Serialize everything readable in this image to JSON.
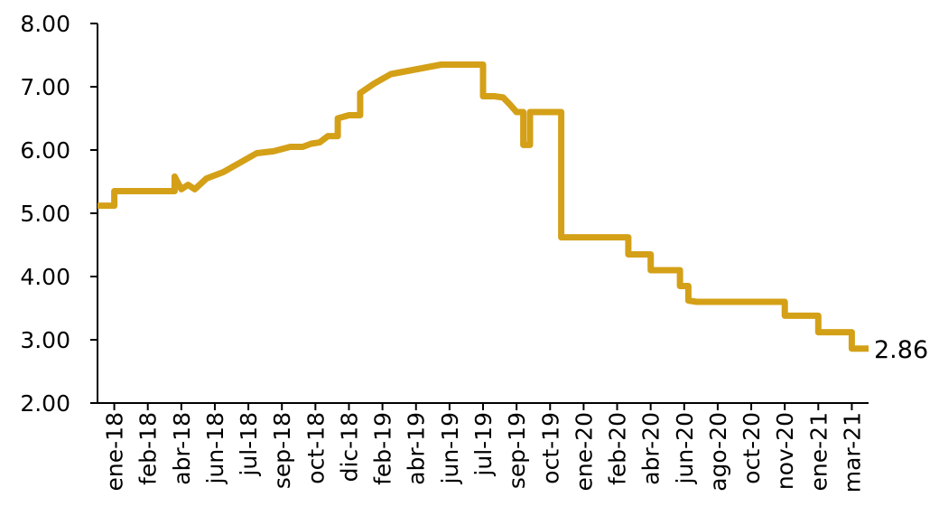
{
  "chart_data": {
    "type": "line",
    "title": "",
    "xlabel": "",
    "ylabel": "",
    "ylim": [
      2.0,
      8.0
    ],
    "yticks": [
      "2.00",
      "3.00",
      "4.00",
      "5.00",
      "6.00",
      "7.00",
      "8.00"
    ],
    "xticks": [
      "ene-18",
      "feb-18",
      "abr-18",
      "jun-18",
      "jul-18",
      "sep-18",
      "oct-18",
      "dic-18",
      "feb-19",
      "abr-19",
      "jun-19",
      "jul-19",
      "sep-19",
      "oct-19",
      "ene-20",
      "feb-20",
      "abr-20",
      "jun-20",
      "ago-20",
      "oct-20",
      "nov-20",
      "ene-21",
      "mar-21"
    ],
    "grid": false,
    "legend": "none",
    "line_color": "#D4A017",
    "end_label": "2.86",
    "series": [
      {
        "x": [
          "ene-18",
          "ene-18",
          "ene-18",
          "abr-18",
          "abr-18",
          "abr-18",
          "abr-18",
          "abr-18",
          "jun-18",
          "jun-18",
          "jul-18",
          "jul-18",
          "sep-18",
          "sep-18",
          "oct-18",
          "oct-18",
          "oct-18",
          "oct-18",
          "dic-18",
          "dic-18",
          "dic-18",
          "feb-19",
          "feb-19",
          "abr-19",
          "abr-19",
          "jun-19",
          "jun-19",
          "jul-19",
          "jul-19",
          "jul-19",
          "sep-19",
          "sep-19",
          "sep-19",
          "sep-19",
          "sep-19",
          "oct-19",
          "oct-19",
          "oct-19",
          "ene-20",
          "feb-20",
          "feb-20",
          "feb-20",
          "abr-20",
          "abr-20",
          "abr-20",
          "jun-20",
          "jun-20",
          "jun-20",
          "jun-20",
          "ago-20",
          "ago-20",
          "nov-20",
          "nov-20",
          "nov-20",
          "ene-21",
          "ene-21",
          "ene-21",
          "mar-21",
          "mar-21",
          "mar-21"
        ],
        "values": [
          5.12,
          5.35,
          5.35,
          5.35,
          5.58,
          5.38,
          5.45,
          5.38,
          5.55,
          5.65,
          5.8,
          5.95,
          5.98,
          6.05,
          6.05,
          6.1,
          6.12,
          6.22,
          6.5,
          6.55,
          6.9,
          7.05,
          7.2,
          7.25,
          7.3,
          7.35,
          7.35,
          7.35,
          6.85,
          6.85,
          6.83,
          6.72,
          6.6,
          6.08,
          6.6,
          6.6,
          6.6,
          4.62,
          4.62,
          4.62,
          4.62,
          4.35,
          4.35,
          4.1,
          4.1,
          4.1,
          3.85,
          3.62,
          3.6,
          3.6,
          3.6,
          3.6,
          3.38,
          3.38,
          3.38,
          3.12,
          3.12,
          3.12,
          2.86,
          2.86
        ]
      }
    ]
  }
}
